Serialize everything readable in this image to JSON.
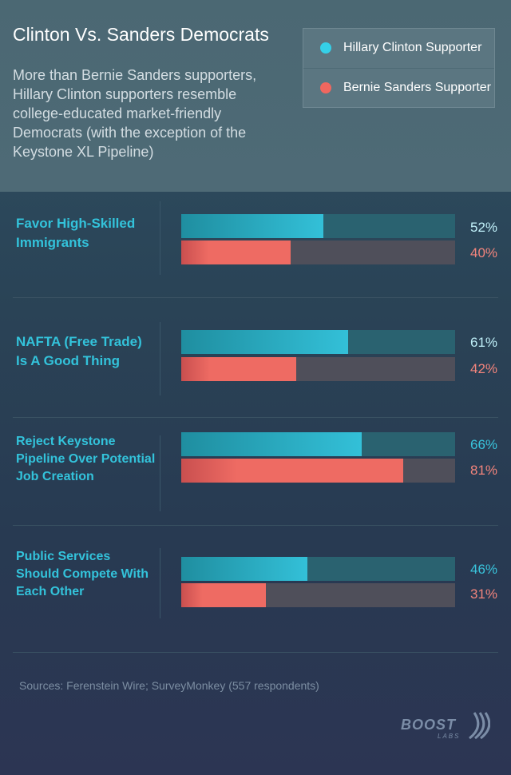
{
  "header": {
    "title": "Clinton Vs. Sanders Democrats",
    "subtitle": "More than Bernie Sanders supporters, Hillary Clinton supporters resemble college-educated  market-friendly Democrats (with the exception of the Keystone XL Pipeline)"
  },
  "legend": [
    {
      "label": "Hillary Clinton Supporter",
      "color": "#35d0e8"
    },
    {
      "label": "Bernie Sanders Supporter",
      "color": "#f0675f"
    }
  ],
  "chart_data": {
    "type": "bar",
    "orientation": "horizontal",
    "categories": [
      "Favor High-Skilled Immigrants",
      "NAFTA (Free Trade) Is A Good Thing",
      "Reject Keystone Pipeline Over Potential Job Creation",
      "Public Services Should Compete With Each Other"
    ],
    "series": [
      {
        "name": "Hillary Clinton Supporter",
        "values": [
          52,
          61,
          66,
          46
        ],
        "labels": [
          "52%",
          "61%",
          "66%",
          "46%"
        ],
        "color": "#35c6dc"
      },
      {
        "name": "Bernie Sanders Supporter",
        "values": [
          40,
          42,
          81,
          31
        ],
        "labels": [
          "40%",
          "42%",
          "81%",
          "31%"
        ],
        "color": "#ee6b63"
      }
    ],
    "xlim": [
      0,
      100
    ]
  },
  "footer": {
    "sources": "Sources:  Ferenstein Wire; SurveyMonkey (557 respondents)",
    "logo": "BOOST",
    "logo_sub": "LABS"
  }
}
